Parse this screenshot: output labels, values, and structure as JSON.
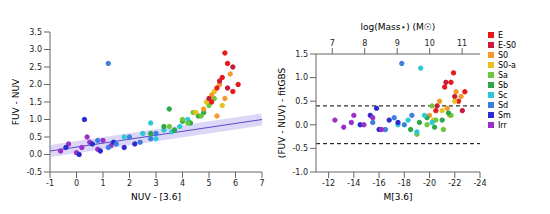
{
  "chart_data": [
    {
      "type": "scatter",
      "x_label": "NUV - [3.6]",
      "y_label": "FUV - NUV",
      "xlim": [
        -1,
        7
      ],
      "xticks": [
        -1,
        0,
        1,
        2,
        3,
        4,
        5,
        6,
        7
      ],
      "ylim": [
        -0.5,
        3.5
      ],
      "yticks": [
        -0.5,
        {
          "value": 0,
          "label": "0.0"
        },
        0.5,
        {
          "value": 1,
          "label": "1.0"
        },
        1.5,
        {
          "value": 2,
          "label": "2.0"
        },
        2.5,
        {
          "value": 3,
          "label": "3.0"
        },
        3.5
      ],
      "fit_line": {
        "x": [
          -1,
          7
        ],
        "y": [
          0.1,
          1.0
        ]
      },
      "series": [
        {
          "color": "#9b30c8",
          "x": [
            -0.6,
            -0.3,
            0.0,
            0.2,
            0.5,
            0.8,
            1.0,
            1.3,
            0.4
          ],
          "y": [
            0.1,
            0.3,
            0.05,
            0.2,
            0.35,
            0.15,
            0.4,
            0.25,
            0.5
          ]
        },
        {
          "color": "#2b2bd0",
          "x": [
            -0.4,
            0.1,
            0.6,
            0.9,
            1.4,
            1.8,
            2.2,
            0.3
          ],
          "y": [
            0.2,
            0.0,
            0.3,
            0.1,
            0.35,
            0.2,
            0.3,
            1.0
          ]
        },
        {
          "color": "#3a7fe0",
          "x": [
            0.8,
            1.5,
            2.0,
            2.4,
            2.8,
            1.2,
            3.0,
            1.2
          ],
          "y": [
            0.4,
            0.3,
            0.5,
            0.35,
            0.45,
            0.2,
            0.6,
            2.6
          ]
        },
        {
          "color": "#2cc8d8",
          "x": [
            1.8,
            2.5,
            3.0,
            3.3,
            3.6,
            3.9,
            2.8,
            4.2
          ],
          "y": [
            0.5,
            0.6,
            0.45,
            0.7,
            0.65,
            0.8,
            0.9,
            1.0
          ]
        },
        {
          "color": "#2aa84a",
          "x": [
            2.8,
            3.3,
            3.7,
            4.0,
            4.3,
            4.6,
            3.5,
            4.8
          ],
          "y": [
            0.6,
            0.8,
            0.7,
            0.95,
            0.9,
            1.1,
            1.3,
            1.2
          ]
        },
        {
          "color": "#6cc83a",
          "x": [
            3.5,
            4.0,
            4.4,
            4.7,
            5.0,
            5.2,
            4.2
          ],
          "y": [
            0.8,
            1.0,
            1.2,
            1.1,
            1.4,
            1.6,
            0.9
          ]
        },
        {
          "color": "#e8c020",
          "x": [
            4.5,
            4.9,
            5.2,
            5.5
          ],
          "y": [
            1.2,
            1.5,
            1.8,
            1.4
          ]
        },
        {
          "color": "#f59a2a",
          "x": [
            4.8,
            5.1,
            5.4,
            5.6,
            5.8,
            5.3
          ],
          "y": [
            1.3,
            1.7,
            2.0,
            1.6,
            2.3,
            1.1
          ]
        },
        {
          "color": "#c81a3a",
          "x": [
            5.0,
            5.4,
            5.7,
            5.9
          ],
          "y": [
            1.6,
            2.1,
            1.9,
            2.5
          ]
        },
        {
          "color": "#e81818",
          "x": [
            5.1,
            5.3,
            5.5,
            5.7,
            5.9,
            6.1,
            5.6
          ],
          "y": [
            1.5,
            1.9,
            2.2,
            2.6,
            1.8,
            2.0,
            2.9
          ]
        }
      ]
    },
    {
      "type": "scatter",
      "x_label": "M[3.6]",
      "y_label": "(FUV - NUV) - fitGBS",
      "x2_label": "log(Mass⋆) (M☉)",
      "xlim": [
        -11,
        -24
      ],
      "xticks": [
        -12,
        -14,
        -16,
        -18,
        -20,
        -22,
        -24
      ],
      "x2lim": [
        6.5,
        11.55
      ],
      "x2ticks": [
        7,
        8,
        9,
        10,
        11
      ],
      "ylim": [
        -1,
        1.5
      ],
      "yticks": [
        {
          "value": -1,
          "label": "-1.0"
        },
        -0.5,
        {
          "value": 0,
          "label": "0.0"
        },
        0.5,
        {
          "value": 1,
          "label": "1.0"
        },
        1.5
      ],
      "reference_lines": [
        0.4,
        -0.4
      ],
      "line_style": "dashed",
      "legend": "right",
      "series": [
        {
          "name": "E",
          "color": "#e81818",
          "x": [
            -20.5,
            -21.2,
            -21.9,
            -22.3,
            -22.8,
            -21.7
          ],
          "y": [
            0.3,
            0.8,
            1.1,
            0.5,
            0.7,
            0.9
          ]
        },
        {
          "name": "E-S0",
          "color": "#c81a3a",
          "x": [
            -20.6,
            -21.3,
            -22.0,
            -22.6
          ],
          "y": [
            0.4,
            0.9,
            0.6,
            0.3
          ]
        },
        {
          "name": "S0",
          "color": "#f59a2a",
          "x": [
            -20.0,
            -20.8,
            -21.4,
            -22.1,
            -22.5
          ],
          "y": [
            0.2,
            0.5,
            0.35,
            0.7,
            0.6
          ]
        },
        {
          "name": "S0-a",
          "color": "#e8c020",
          "x": [
            -20.3,
            -21.0,
            -21.6,
            -22.0
          ],
          "y": [
            0.1,
            0.3,
            0.2,
            0.5
          ]
        },
        {
          "name": "Sa",
          "color": "#6cc83a",
          "x": [
            -19.0,
            -19.8,
            -20.5,
            -21.1,
            -21.7,
            -20.2
          ],
          "y": [
            -0.2,
            0.0,
            0.1,
            -0.1,
            0.2,
            0.4
          ]
        },
        {
          "name": "Sb",
          "color": "#2aa84a",
          "x": [
            -18.5,
            -19.2,
            -19.8,
            -20.4,
            -21.0,
            -21.5
          ],
          "y": [
            -0.1,
            0.05,
            0.15,
            -0.05,
            0.1,
            0.25
          ]
        },
        {
          "name": "Sc",
          "color": "#2cc8d8",
          "x": [
            -17.5,
            -18.3,
            -19.0,
            -19.6,
            -20.2,
            -19.3
          ],
          "y": [
            0.0,
            0.1,
            -0.15,
            0.2,
            0.05,
            1.2
          ]
        },
        {
          "name": "Sd",
          "color": "#3a7fe0",
          "x": [
            -15.5,
            -16.5,
            -17.2,
            -18.0,
            -18.6,
            -17.8
          ],
          "y": [
            0.05,
            -0.1,
            0.15,
            0.0,
            0.2,
            1.3
          ]
        },
        {
          "name": "Sm",
          "color": "#2b2bd0",
          "x": [
            -14.5,
            -15.3,
            -16.0,
            -16.8,
            -17.5,
            -15.8
          ],
          "y": [
            0.0,
            0.2,
            -0.1,
            0.1,
            0.05,
            0.35
          ]
        },
        {
          "name": "Irr",
          "color": "#9b30c8",
          "x": [
            -12.5,
            -13.2,
            -14.0,
            -14.8,
            -15.5,
            -16.2,
            -13.8
          ],
          "y": [
            0.1,
            -0.05,
            0.2,
            0.0,
            0.15,
            -0.1,
            0.05
          ]
        }
      ]
    }
  ]
}
